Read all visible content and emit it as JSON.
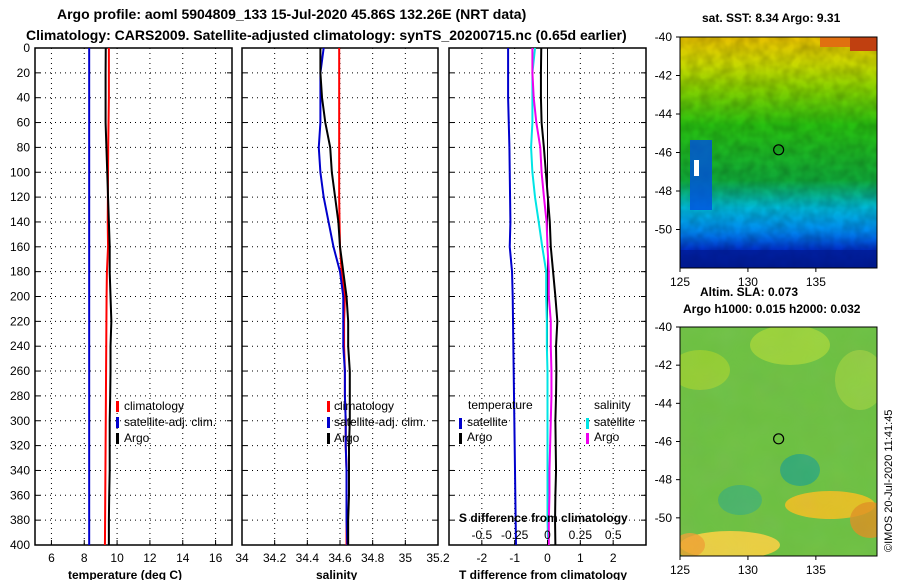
{
  "title_line1": "Argo profile: aoml 5904809_133 15-Jul-2020 45.86S 132.26E (NRT data)",
  "title_line2": "Climatology: CARS2009. Satellite-adjusted climatology: synTS_20200715.nc (0.65d earlier)",
  "watermark": "©IMOS 20-Jul-2020 11:41:45",
  "colors": {
    "climatology": "#ff0000",
    "satellite": "#0000cc",
    "argo": "#000000",
    "sat_salinity": "#00e5e5",
    "argo_salinity": "#ee00ee"
  },
  "depth_ticks": [
    "0",
    "20",
    "40",
    "60",
    "80",
    "100",
    "120",
    "140",
    "160",
    "180",
    "200",
    "220",
    "240",
    "260",
    "280",
    "300",
    "320",
    "340",
    "360",
    "380",
    "400"
  ],
  "chart_data": [
    {
      "type": "line",
      "id": "temperature",
      "xlabel": "temperature (deg C)",
      "xlim": [
        5,
        17
      ],
      "ylim": [
        400,
        0
      ],
      "x_ticks": [
        "6",
        "8",
        "10",
        "12",
        "14",
        "16"
      ],
      "legend": [
        "climatology",
        "satellite-adj. clim.",
        "Argo"
      ],
      "depth": [
        0,
        20,
        40,
        60,
        80,
        100,
        120,
        140,
        160,
        180,
        200,
        220,
        240,
        260,
        280,
        300,
        320,
        340,
        360,
        380,
        400
      ],
      "series": [
        {
          "name": "climatology",
          "values": [
            9.5,
            9.5,
            9.5,
            9.48,
            9.46,
            9.45,
            9.44,
            9.43,
            9.45,
            9.38,
            9.36,
            9.35,
            9.34,
            9.33,
            9.32,
            9.31,
            9.3,
            9.29,
            9.28,
            9.27,
            9.26
          ]
        },
        {
          "name": "satellite-adj. clim.",
          "values": [
            8.3,
            8.3,
            8.3,
            8.3,
            8.3,
            8.3,
            8.3,
            8.3,
            8.3,
            8.3,
            8.3,
            8.3,
            8.3,
            8.3,
            8.3,
            8.3,
            8.3,
            8.3,
            8.3,
            8.3,
            8.3
          ]
        },
        {
          "name": "Argo",
          "values": [
            9.31,
            9.3,
            9.3,
            9.3,
            9.35,
            9.4,
            9.45,
            9.5,
            9.55,
            9.55,
            9.6,
            9.65,
            9.6,
            9.6,
            9.58,
            9.55,
            9.55,
            9.55,
            9.52,
            9.5,
            9.5
          ]
        }
      ]
    },
    {
      "type": "line",
      "id": "salinity",
      "xlabel": "salinity",
      "xlim": [
        34,
        35.2
      ],
      "ylim": [
        400,
        0
      ],
      "x_ticks": [
        "34",
        "34.2",
        "34.4",
        "34.6",
        "34.8",
        "35",
        "35.2"
      ],
      "legend": [
        "climatology",
        "satellite-adj. clim.",
        "Argo"
      ],
      "depth": [
        0,
        20,
        40,
        60,
        80,
        100,
        120,
        140,
        160,
        180,
        200,
        220,
        240,
        260,
        280,
        300,
        320,
        340,
        360,
        380,
        400
      ],
      "series": [
        {
          "name": "climatology",
          "values": [
            34.595,
            34.595,
            34.595,
            34.595,
            34.595,
            34.595,
            34.595,
            34.597,
            34.6,
            34.61,
            34.63,
            34.625,
            34.625,
            34.63,
            34.63,
            34.635,
            34.635,
            34.64,
            34.64,
            34.64,
            34.64
          ]
        },
        {
          "name": "satellite-adj. clim.",
          "values": [
            34.5,
            34.48,
            34.48,
            34.48,
            34.47,
            34.48,
            34.5,
            34.53,
            34.56,
            34.6,
            34.62,
            34.62,
            34.62,
            34.63,
            34.63,
            34.635,
            34.635,
            34.64,
            34.64,
            34.64,
            34.645
          ]
        },
        {
          "name": "Argo",
          "values": [
            34.48,
            34.48,
            34.49,
            34.51,
            34.54,
            34.55,
            34.57,
            34.59,
            34.6,
            34.62,
            34.64,
            34.65,
            34.65,
            34.66,
            34.66,
            34.66,
            34.655,
            34.655,
            34.655,
            34.65,
            34.65
          ]
        }
      ]
    },
    {
      "type": "line",
      "id": "difference",
      "xlabel": "T difference from climatology",
      "xlabel_top": "S difference from climatology",
      "xlim": [
        -3,
        3
      ],
      "ylim": [
        400,
        0
      ],
      "x_ticks": [
        "-2",
        "-1",
        "0",
        "1",
        "2"
      ],
      "x_ticks_top": [
        "-0.5",
        "-0.25",
        "0",
        "0.25",
        "0.5"
      ],
      "legend_temperature_title": "temperature",
      "legend_salinity_title": "salinity",
      "legend_temperature": [
        "satellite",
        "Argo"
      ],
      "legend_salinity": [
        "satellite",
        "Argo"
      ],
      "depth": [
        0,
        20,
        40,
        60,
        80,
        100,
        120,
        140,
        160,
        180,
        200,
        220,
        240,
        260,
        280,
        300,
        320,
        340,
        360,
        380,
        400
      ],
      "series": [
        {
          "name": "T satellite",
          "values": [
            -1.2,
            -1.2,
            -1.2,
            -1.18,
            -1.16,
            -1.15,
            -1.14,
            -1.13,
            -1.15,
            -1.08,
            -1.06,
            -1.05,
            -1.04,
            -1.03,
            -1.02,
            -1.01,
            -1,
            -0.99,
            -0.98,
            -0.97,
            -0.96
          ]
        },
        {
          "name": "T Argo",
          "values": [
            -0.19,
            -0.2,
            -0.2,
            -0.18,
            -0.11,
            -0.05,
            0.01,
            0.07,
            0.1,
            0.17,
            0.24,
            0.3,
            0.26,
            0.27,
            0.26,
            0.24,
            0.25,
            0.26,
            0.24,
            0.23,
            0.24
          ]
        },
        {
          "name": "S satellite",
          "values": [
            -0.095,
            -0.115,
            -0.115,
            -0.115,
            -0.125,
            -0.115,
            -0.095,
            -0.067,
            -0.04,
            -0.01,
            -0.01,
            -0.005,
            -0.005,
            0,
            0,
            0,
            0,
            0,
            0,
            0,
            0.005
          ]
        },
        {
          "name": "S Argo",
          "values": [
            -0.115,
            -0.115,
            -0.105,
            -0.085,
            -0.055,
            -0.045,
            -0.027,
            -0.007,
            0,
            0.01,
            0.01,
            0.025,
            0.025,
            0.03,
            0.03,
            0.025,
            0.02,
            0.015,
            0.015,
            0.01,
            0.01
          ]
        }
      ]
    },
    {
      "type": "heatmap",
      "id": "sst-map",
      "title": "sat. SST: 8.34 Argo: 9.31",
      "x_ticks": [
        "125",
        "130",
        "135"
      ],
      "y_ticks": [
        "-40",
        "-42",
        "-44",
        "-46",
        "-48",
        "-50"
      ],
      "xlim": [
        125,
        139.5
      ],
      "ylim": [
        -52,
        -40
      ],
      "marker": {
        "lon": 132.26,
        "lat": -45.86
      }
    },
    {
      "type": "heatmap",
      "id": "sla-map",
      "title_line1": "Altim. SLA: 0.073",
      "title_line2": "Argo h1000: 0.015 h2000: 0.032",
      "x_ticks": [
        "125",
        "130",
        "135"
      ],
      "y_ticks": [
        "-40",
        "-42",
        "-44",
        "-46",
        "-48",
        "-50"
      ],
      "xlim": [
        125,
        139.5
      ],
      "ylim": [
        -52,
        -40
      ],
      "marker": {
        "lon": 132.26,
        "lat": -45.86
      }
    }
  ]
}
